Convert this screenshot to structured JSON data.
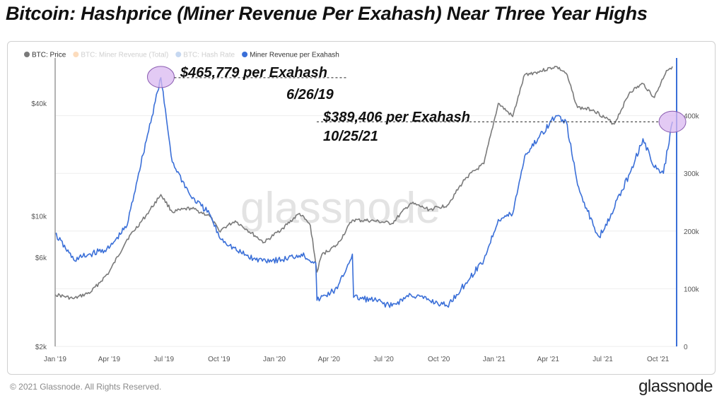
{
  "title": "Bitcoin: Hashprice (Miner Revenue Per Exahash) Near Three Year Highs",
  "footer": {
    "copyright": "© 2021 Glassnode. All Rights Reserved.",
    "brand": "glassnode"
  },
  "watermark": "glassnode",
  "chart_data": {
    "type": "line",
    "x_axis": {
      "ticks": [
        "Jan '19",
        "Apr '19",
        "Jul '19",
        "Oct '19",
        "Jan '20",
        "Apr '20",
        "Jul '20",
        "Oct '20",
        "Jan '21",
        "Apr '21",
        "Jul '21",
        "Oct '21"
      ],
      "range": [
        "2019-01-01",
        "2021-11-01"
      ]
    },
    "y_left": {
      "scale": "log",
      "ticks": [
        "$2k",
        "$6k",
        "$10k",
        "$40k"
      ],
      "tick_values": [
        2000,
        6000,
        10000,
        40000
      ],
      "range": [
        2000,
        70000
      ]
    },
    "y_right": {
      "scale": "linear",
      "ticks": [
        "0",
        "100k",
        "200k",
        "300k",
        "400k"
      ],
      "tick_values": [
        0,
        100000,
        200000,
        300000,
        400000
      ],
      "range": [
        0,
        500000
      ]
    },
    "grid": true,
    "legend_position": "top-left",
    "legend": [
      {
        "name": "BTC: Price",
        "color": "#7a7a7a",
        "visible": true
      },
      {
        "name": "BTC: Miner Revenue (Total)",
        "color": "#f59a42",
        "visible": false
      },
      {
        "name": "BTC: Hash Rate",
        "color": "#5b8fd8",
        "visible": false
      },
      {
        "name": "Miner Revenue per Exahash",
        "color": "#3a6fd8",
        "visible": true
      }
    ],
    "series": [
      {
        "name": "BTC: Price",
        "axis": "left",
        "color": "#7a7a7a",
        "x": [
          "2019-01-01",
          "2019-02-01",
          "2019-03-01",
          "2019-04-01",
          "2019-05-01",
          "2019-06-01",
          "2019-06-26",
          "2019-07-15",
          "2019-08-15",
          "2019-09-15",
          "2019-10-01",
          "2019-10-28",
          "2019-11-15",
          "2019-12-15",
          "2020-01-15",
          "2020-02-12",
          "2020-03-01",
          "2020-03-12",
          "2020-03-20",
          "2020-04-15",
          "2020-05-10",
          "2020-06-15",
          "2020-07-15",
          "2020-08-15",
          "2020-09-15",
          "2020-10-15",
          "2020-11-15",
          "2020-12-15",
          "2021-01-08",
          "2021-02-01",
          "2021-02-21",
          "2021-03-15",
          "2021-04-14",
          "2021-05-01",
          "2021-05-20",
          "2021-06-15",
          "2021-07-20",
          "2021-08-15",
          "2021-09-06",
          "2021-09-25",
          "2021-10-15",
          "2021-10-25"
        ],
        "y": [
          3800,
          3600,
          3900,
          5000,
          7500,
          10000,
          13000,
          10500,
          11000,
          10000,
          8300,
          9400,
          8500,
          7200,
          8600,
          10300,
          8900,
          5000,
          6200,
          7000,
          9500,
          9400,
          9100,
          11700,
          10800,
          11400,
          16000,
          19000,
          40000,
          34000,
          57000,
          59000,
          63000,
          58000,
          38000,
          37000,
          31000,
          46000,
          51000,
          43000,
          60000,
          63000
        ]
      },
      {
        "name": "Miner Revenue per Exahash",
        "axis": "right",
        "color": "#3a6fd8",
        "x": [
          "2019-01-01",
          "2019-02-01",
          "2019-03-01",
          "2019-04-01",
          "2019-05-01",
          "2019-05-20",
          "2019-06-26",
          "2019-07-15",
          "2019-08-15",
          "2019-09-15",
          "2019-10-01",
          "2019-11-01",
          "2019-12-01",
          "2020-01-15",
          "2020-02-15",
          "2020-03-10",
          "2020-03-12",
          "2020-04-15",
          "2020-05-10",
          "2020-05-12",
          "2020-06-15",
          "2020-07-15",
          "2020-08-15",
          "2020-09-15",
          "2020-10-15",
          "2020-11-15",
          "2020-12-15",
          "2021-01-08",
          "2021-02-01",
          "2021-02-21",
          "2021-03-15",
          "2021-04-14",
          "2021-05-01",
          "2021-05-20",
          "2021-06-15",
          "2021-06-25",
          "2021-07-15",
          "2021-08-15",
          "2021-09-06",
          "2021-09-25",
          "2021-10-10",
          "2021-10-25"
        ],
        "y": [
          195000,
          150000,
          160000,
          170000,
          210000,
          300000,
          465779,
          320000,
          260000,
          230000,
          190000,
          165000,
          150000,
          150000,
          160000,
          145000,
          80000,
          100000,
          160000,
          85000,
          80000,
          70000,
          90000,
          80000,
          70000,
          110000,
          150000,
          220000,
          230000,
          330000,
          360000,
          400000,
          390000,
          280000,
          210000,
          190000,
          230000,
          300000,
          360000,
          310000,
          300000,
          389406
        ]
      }
    ],
    "annotations": [
      {
        "label": "$465,779 per Exahash",
        "date_label": "6/26/19",
        "x": "2019-06-26",
        "y": 465779
      },
      {
        "label": "$389,406 per Exahash",
        "date_label": "10/25/21",
        "x": "2021-10-25",
        "y": 389406
      }
    ]
  }
}
